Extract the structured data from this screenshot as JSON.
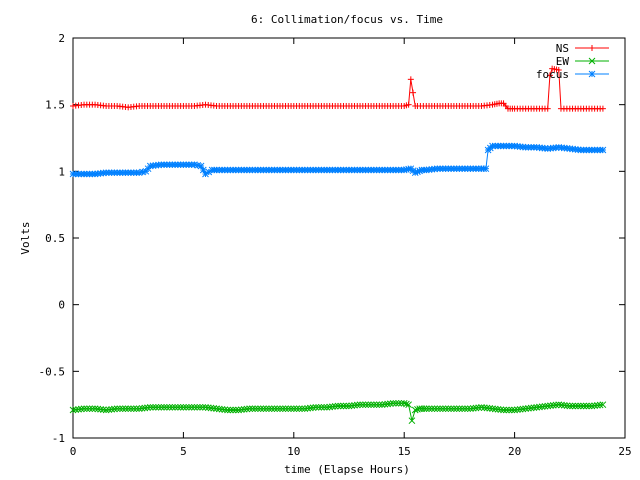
{
  "chart_data": {
    "type": "line",
    "title": "6: Collimation/focus vs. Time",
    "xlabel": "time (Elapse Hours)",
    "ylabel": "Volts",
    "xlim": [
      0,
      25
    ],
    "ylim": [
      -1,
      2
    ],
    "xticks": [
      0,
      5,
      10,
      15,
      20,
      25
    ],
    "yticks": [
      -1,
      -0.5,
      0,
      0.5,
      1,
      1.5,
      2
    ],
    "ytick_labels": [
      "-1",
      "-0.5",
      "0",
      "0.5",
      "1",
      "1.5",
      "2"
    ],
    "grid": false,
    "legend_position": "top-right",
    "series": [
      {
        "name": "NS",
        "color": "#ff0000",
        "marker": "plus",
        "x": [
          0.0,
          0.5,
          1.0,
          1.5,
          2.0,
          2.5,
          3.0,
          3.5,
          4.0,
          4.5,
          5.0,
          5.5,
          6.0,
          6.5,
          7.0,
          8.0,
          9.0,
          10.0,
          11.0,
          12.0,
          13.0,
          14.0,
          15.0,
          15.2,
          15.3,
          15.5,
          15.6,
          16.0,
          17.0,
          18.0,
          18.5,
          19.0,
          19.3,
          19.5,
          19.7,
          20.0,
          20.5,
          21.0,
          21.5,
          21.6,
          21.7,
          22.0,
          22.1,
          22.5,
          23.0,
          23.5,
          24.0
        ],
        "y": [
          1.49,
          1.5,
          1.5,
          1.49,
          1.49,
          1.48,
          1.49,
          1.49,
          1.49,
          1.49,
          1.49,
          1.49,
          1.5,
          1.49,
          1.49,
          1.49,
          1.49,
          1.49,
          1.49,
          1.49,
          1.49,
          1.49,
          1.49,
          1.5,
          1.69,
          1.49,
          1.49,
          1.49,
          1.49,
          1.49,
          1.49,
          1.5,
          1.51,
          1.51,
          1.47,
          1.47,
          1.47,
          1.47,
          1.47,
          1.72,
          1.77,
          1.76,
          1.47,
          1.47,
          1.47,
          1.47,
          1.47
        ]
      },
      {
        "name": "EW",
        "color": "#00b000",
        "marker": "x",
        "x": [
          0.0,
          0.5,
          1.0,
          1.5,
          2.0,
          2.5,
          3.0,
          3.5,
          4.0,
          4.5,
          5.0,
          5.5,
          6.0,
          6.5,
          7.0,
          7.5,
          8.0,
          8.5,
          9.0,
          9.5,
          10.0,
          10.5,
          11.0,
          11.5,
          12.0,
          12.5,
          13.0,
          13.5,
          14.0,
          14.5,
          15.0,
          15.2,
          15.35,
          15.5,
          15.7,
          16.0,
          16.5,
          17.0,
          17.5,
          18.0,
          18.5,
          19.0,
          19.5,
          20.0,
          20.5,
          21.0,
          21.5,
          22.0,
          22.5,
          23.0,
          23.5,
          24.0
        ],
        "y": [
          -0.79,
          -0.78,
          -0.78,
          -0.79,
          -0.78,
          -0.78,
          -0.78,
          -0.77,
          -0.77,
          -0.77,
          -0.77,
          -0.77,
          -0.77,
          -0.78,
          -0.79,
          -0.79,
          -0.78,
          -0.78,
          -0.78,
          -0.78,
          -0.78,
          -0.78,
          -0.77,
          -0.77,
          -0.76,
          -0.76,
          -0.75,
          -0.75,
          -0.75,
          -0.74,
          -0.74,
          -0.75,
          -0.87,
          -0.79,
          -0.78,
          -0.78,
          -0.78,
          -0.78,
          -0.78,
          -0.78,
          -0.77,
          -0.78,
          -0.79,
          -0.79,
          -0.78,
          -0.77,
          -0.76,
          -0.75,
          -0.76,
          -0.76,
          -0.76,
          -0.75
        ]
      },
      {
        "name": "focus",
        "color": "#0080ff",
        "marker": "star",
        "x": [
          0.0,
          0.5,
          1.0,
          1.5,
          2.0,
          2.5,
          3.0,
          3.3,
          3.5,
          4.0,
          4.5,
          5.0,
          5.5,
          5.8,
          6.0,
          6.3,
          6.5,
          7.0,
          7.5,
          8.0,
          9.0,
          10.0,
          11.0,
          12.0,
          13.0,
          14.0,
          15.0,
          15.3,
          15.5,
          15.8,
          16.0,
          16.5,
          17.0,
          17.5,
          18.0,
          18.5,
          18.7,
          18.8,
          19.0,
          19.5,
          20.0,
          20.5,
          21.0,
          21.5,
          22.0,
          22.5,
          23.0,
          23.5,
          24.0
        ],
        "y": [
          0.98,
          0.98,
          0.98,
          0.99,
          0.99,
          0.99,
          0.99,
          1.0,
          1.04,
          1.05,
          1.05,
          1.05,
          1.05,
          1.04,
          0.98,
          1.01,
          1.01,
          1.01,
          1.01,
          1.01,
          1.01,
          1.01,
          1.01,
          1.01,
          1.01,
          1.01,
          1.01,
          1.02,
          0.99,
          1.01,
          1.01,
          1.02,
          1.02,
          1.02,
          1.02,
          1.02,
          1.02,
          1.16,
          1.19,
          1.19,
          1.19,
          1.18,
          1.18,
          1.17,
          1.18,
          1.17,
          1.16,
          1.16,
          1.16
        ]
      }
    ]
  }
}
